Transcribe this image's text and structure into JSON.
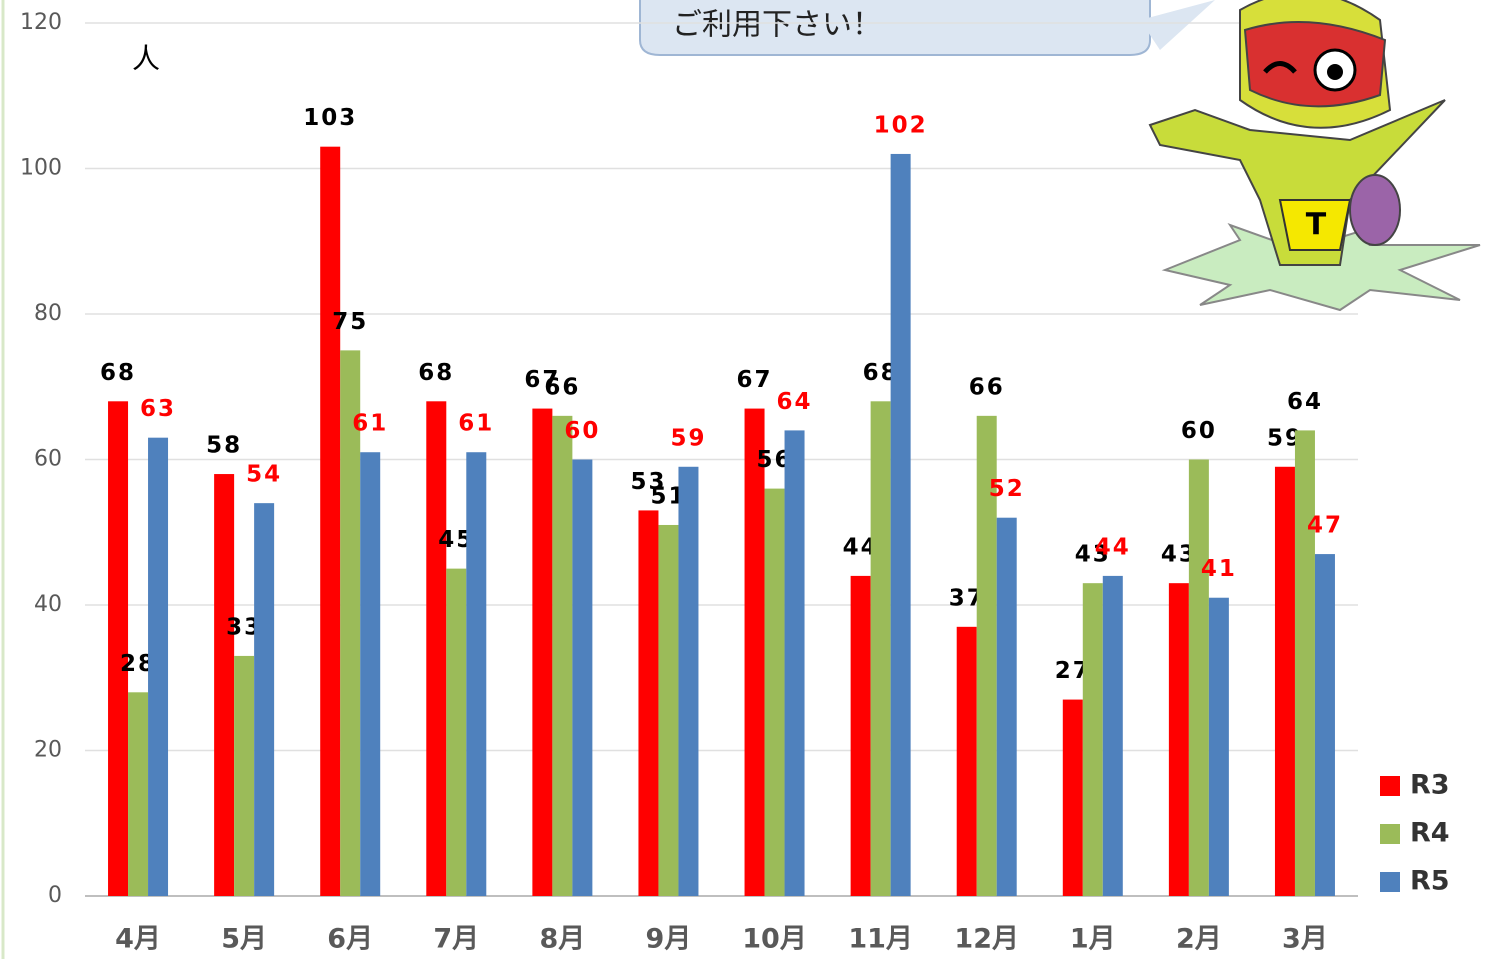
{
  "chart_data": {
    "type": "bar",
    "unit_label": "人",
    "annotation": "ご利用下さい！",
    "categories": [
      "4月",
      "5月",
      "6月",
      "7月",
      "8月",
      "9月",
      "10月",
      "11月",
      "12月",
      "1月",
      "2月",
      "3月"
    ],
    "series": [
      {
        "name": "R3",
        "color": "#ff0000",
        "label_color": "#000000",
        "values": [
          68,
          58,
          103,
          68,
          67,
          53,
          67,
          44,
          37,
          27,
          43,
          59
        ]
      },
      {
        "name": "R4",
        "color": "#9bbb59",
        "label_color": "#000000",
        "values": [
          28,
          33,
          75,
          45,
          66,
          51,
          56,
          68,
          66,
          43,
          60,
          64
        ]
      },
      {
        "name": "R5",
        "color": "#4f81bd",
        "label_color": "#ff0000",
        "values": [
          63,
          54,
          61,
          61,
          60,
          59,
          64,
          102,
          52,
          44,
          41,
          47
        ]
      }
    ],
    "ylim": [
      0,
      120
    ],
    "yticks": [
      0,
      20,
      40,
      60,
      80,
      100,
      120
    ],
    "grid": true,
    "legend": "lower right"
  }
}
